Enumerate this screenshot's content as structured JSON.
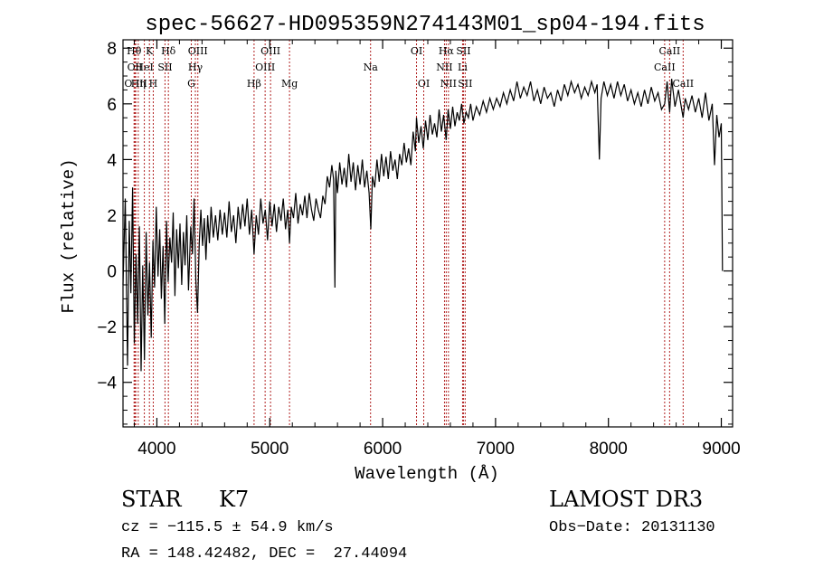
{
  "chart_data": {
    "type": "line",
    "title": "spec-56627-HD095359N274143M01_sp04-194.fits",
    "xlabel": "Wavelength (Å)",
    "ylabel": "Flux (relative)",
    "xlim": [
      3700,
      9100
    ],
    "ylim": [
      -5.6,
      8.3
    ],
    "xticks": [
      "4000",
      "5000",
      "6000",
      "7000",
      "8000",
      "9000"
    ],
    "yticks": [
      "−4",
      "−2",
      "0",
      "2",
      "4",
      "6",
      "8"
    ],
    "xtick_values": [
      4000,
      5000,
      6000,
      7000,
      8000,
      9000
    ],
    "ytick_values": [
      -4,
      -2,
      0,
      2,
      4,
      6,
      8
    ],
    "line_color": "#000000",
    "marker_color": "#b22222",
    "spectrum": [
      [
        3700,
        -0.5
      ],
      [
        3720,
        2.6
      ],
      [
        3740,
        -3.4
      ],
      [
        3755,
        1.8
      ],
      [
        3770,
        -0.8
      ],
      [
        3785,
        3.0
      ],
      [
        3800,
        -2.6
      ],
      [
        3815,
        0.6
      ],
      [
        3830,
        -1.9
      ],
      [
        3845,
        1.6
      ],
      [
        3860,
        -3.6
      ],
      [
        3875,
        0.2
      ],
      [
        3890,
        -3.2
      ],
      [
        3905,
        1.4
      ],
      [
        3920,
        -1.6
      ],
      [
        3935,
        0.3
      ],
      [
        3950,
        -2.4
      ],
      [
        3965,
        1.1
      ],
      [
        3980,
        -0.6
      ],
      [
        3995,
        2.3
      ],
      [
        4010,
        -0.2
      ],
      [
        4025,
        1.5
      ],
      [
        4040,
        -1.0
      ],
      [
        4055,
        0.9
      ],
      [
        4070,
        -1.9
      ],
      [
        4085,
        1.8
      ],
      [
        4100,
        -0.4
      ],
      [
        4115,
        1.2
      ],
      [
        4130,
        0.3
      ],
      [
        4145,
        2.1
      ],
      [
        4160,
        -0.9
      ],
      [
        4175,
        1.5
      ],
      [
        4190,
        0.1
      ],
      [
        4205,
        1.7
      ],
      [
        4220,
        -0.5
      ],
      [
        4235,
        1.4
      ],
      [
        4250,
        0.2
      ],
      [
        4265,
        2.0
      ],
      [
        4280,
        -0.7
      ],
      [
        4300,
        1.6
      ],
      [
        4315,
        0.6
      ],
      [
        4330,
        2.6
      ],
      [
        4345,
        -0.3
      ],
      [
        4360,
        -1.5
      ],
      [
        4375,
        1.0
      ],
      [
        4390,
        2.2
      ],
      [
        4405,
        0.9
      ],
      [
        4420,
        1.9
      ],
      [
        4435,
        0.4
      ],
      [
        4450,
        2.0
      ],
      [
        4465,
        1.0
      ],
      [
        4480,
        2.3
      ],
      [
        4500,
        1.2
      ],
      [
        4520,
        2.0
      ],
      [
        4540,
        1.1
      ],
      [
        4560,
        2.2
      ],
      [
        4580,
        1.3
      ],
      [
        4600,
        2.1
      ],
      [
        4620,
        1.2
      ],
      [
        4640,
        2.5
      ],
      [
        4660,
        1.4
      ],
      [
        4680,
        2.0
      ],
      [
        4700,
        1.0
      ],
      [
        4720,
        2.3
      ],
      [
        4740,
        1.5
      ],
      [
        4760,
        2.4
      ],
      [
        4780,
        1.6
      ],
      [
        4800,
        2.6
      ],
      [
        4820,
        1.3
      ],
      [
        4840,
        2.2
      ],
      [
        4861,
        0.6
      ],
      [
        4880,
        2.0
      ],
      [
        4900,
        1.3
      ],
      [
        4920,
        2.6
      ],
      [
        4940,
        1.7
      ],
      [
        4960,
        2.2
      ],
      [
        4980,
        1.1
      ],
      [
        5000,
        2.5
      ],
      [
        5020,
        1.6
      ],
      [
        5040,
        2.4
      ],
      [
        5060,
        1.4
      ],
      [
        5080,
        2.3
      ],
      [
        5100,
        1.8
      ],
      [
        5120,
        2.6
      ],
      [
        5140,
        1.5
      ],
      [
        5160,
        2.2
      ],
      [
        5175,
        1.0
      ],
      [
        5190,
        2.3
      ],
      [
        5210,
        1.9
      ],
      [
        5230,
        2.8
      ],
      [
        5250,
        1.7
      ],
      [
        5270,
        2.4
      ],
      [
        5290,
        2.0
      ],
      [
        5310,
        2.7
      ],
      [
        5330,
        1.9
      ],
      [
        5350,
        2.8
      ],
      [
        5370,
        2.2
      ],
      [
        5390,
        1.8
      ],
      [
        5410,
        2.6
      ],
      [
        5430,
        2.2
      ],
      [
        5450,
        1.9
      ],
      [
        5470,
        2.7
      ],
      [
        5490,
        2.4
      ],
      [
        5510,
        3.4
      ],
      [
        5530,
        3.0
      ],
      [
        5550,
        3.8
      ],
      [
        5565,
        3.3
      ],
      [
        5577,
        -0.6
      ],
      [
        5585,
        3.6
      ],
      [
        5600,
        2.8
      ],
      [
        5620,
        3.9
      ],
      [
        5640,
        3.1
      ],
      [
        5660,
        3.7
      ],
      [
        5680,
        3.0
      ],
      [
        5700,
        4.2
      ],
      [
        5720,
        3.2
      ],
      [
        5740,
        3.9
      ],
      [
        5760,
        2.9
      ],
      [
        5780,
        3.8
      ],
      [
        5800,
        3.1
      ],
      [
        5820,
        4.0
      ],
      [
        5840,
        3.0
      ],
      [
        5860,
        3.6
      ],
      [
        5880,
        2.8
      ],
      [
        5895,
        1.5
      ],
      [
        5910,
        3.4
      ],
      [
        5930,
        3.0
      ],
      [
        5950,
        4.0
      ],
      [
        5970,
        3.2
      ],
      [
        5990,
        4.2
      ],
      [
        6010,
        3.4
      ],
      [
        6030,
        4.1
      ],
      [
        6050,
        3.3
      ],
      [
        6070,
        4.3
      ],
      [
        6090,
        3.6
      ],
      [
        6110,
        4.0
      ],
      [
        6130,
        3.3
      ],
      [
        6150,
        4.2
      ],
      [
        6170,
        3.8
      ],
      [
        6190,
        4.6
      ],
      [
        6210,
        3.9
      ],
      [
        6230,
        4.4
      ],
      [
        6250,
        3.8
      ],
      [
        6270,
        5.0
      ],
      [
        6290,
        4.3
      ],
      [
        6300,
        5.5
      ],
      [
        6320,
        4.6
      ],
      [
        6340,
        5.2
      ],
      [
        6360,
        4.4
      ],
      [
        6380,
        5.4
      ],
      [
        6400,
        4.7
      ],
      [
        6420,
        5.6
      ],
      [
        6440,
        4.9
      ],
      [
        6460,
        5.3
      ],
      [
        6480,
        4.8
      ],
      [
        6500,
        5.8
      ],
      [
        6520,
        5.0
      ],
      [
        6540,
        5.6
      ],
      [
        6563,
        4.7
      ],
      [
        6580,
        5.8
      ],
      [
        6600,
        5.1
      ],
      [
        6620,
        5.9
      ],
      [
        6640,
        5.2
      ],
      [
        6660,
        5.7
      ],
      [
        6680,
        5.4
      ],
      [
        6700,
        6.0
      ],
      [
        6720,
        5.3
      ],
      [
        6740,
        5.7
      ],
      [
        6760,
        5.5
      ],
      [
        6780,
        6.0
      ],
      [
        6800,
        5.4
      ],
      [
        6830,
        5.9
      ],
      [
        6860,
        5.6
      ],
      [
        6890,
        6.1
      ],
      [
        6920,
        5.7
      ],
      [
        6950,
        6.2
      ],
      [
        6980,
        5.8
      ],
      [
        7010,
        6.2
      ],
      [
        7040,
        5.9
      ],
      [
        7070,
        6.4
      ],
      [
        7100,
        6.0
      ],
      [
        7130,
        6.5
      ],
      [
        7160,
        6.1
      ],
      [
        7190,
        6.8
      ],
      [
        7220,
        6.2
      ],
      [
        7250,
        6.6
      ],
      [
        7280,
        6.3
      ],
      [
        7310,
        6.8
      ],
      [
        7340,
        6.1
      ],
      [
        7370,
        6.5
      ],
      [
        7400,
        6.0
      ],
      [
        7430,
        6.6
      ],
      [
        7460,
        6.2
      ],
      [
        7490,
        6.4
      ],
      [
        7520,
        5.9
      ],
      [
        7550,
        6.5
      ],
      [
        7580,
        6.1
      ],
      [
        7610,
        6.7
      ],
      [
        7640,
        6.3
      ],
      [
        7670,
        6.8
      ],
      [
        7700,
        6.4
      ],
      [
        7730,
        6.7
      ],
      [
        7760,
        6.2
      ],
      [
        7790,
        6.6
      ],
      [
        7820,
        6.3
      ],
      [
        7850,
        6.8
      ],
      [
        7880,
        6.4
      ],
      [
        7900,
        6.7
      ],
      [
        7920,
        4.0
      ],
      [
        7935,
        6.2
      ],
      [
        7960,
        6.8
      ],
      [
        7990,
        6.3
      ],
      [
        8020,
        6.7
      ],
      [
        8050,
        6.2
      ],
      [
        8080,
        6.8
      ],
      [
        8110,
        6.3
      ],
      [
        8140,
        6.7
      ],
      [
        8170,
        6.1
      ],
      [
        8200,
        6.5
      ],
      [
        8230,
        6.0
      ],
      [
        8260,
        6.4
      ],
      [
        8290,
        5.9
      ],
      [
        8320,
        6.5
      ],
      [
        8350,
        6.0
      ],
      [
        8380,
        6.6
      ],
      [
        8410,
        6.1
      ],
      [
        8440,
        6.4
      ],
      [
        8470,
        5.8
      ],
      [
        8498,
        6.0
      ],
      [
        8520,
        6.8
      ],
      [
        8542,
        5.7
      ],
      [
        8560,
        6.9
      ],
      [
        8590,
        5.9
      ],
      [
        8620,
        6.5
      ],
      [
        8662,
        5.5
      ],
      [
        8680,
        6.2
      ],
      [
        8710,
        5.8
      ],
      [
        8740,
        6.3
      ],
      [
        8770,
        5.7
      ],
      [
        8800,
        6.2
      ],
      [
        8830,
        5.5
      ],
      [
        8860,
        6.4
      ],
      [
        8890,
        5.4
      ],
      [
        8920,
        6.0
      ],
      [
        8940,
        3.8
      ],
      [
        8960,
        5.6
      ],
      [
        8980,
        4.8
      ],
      [
        9000,
        5.3
      ],
      [
        9010,
        0.0
      ]
    ],
    "lines": [
      {
        "name": "Hθ",
        "wl": 3798,
        "row": 0
      },
      {
        "name": "O I",
        "wl": 3805,
        "row": 1
      },
      {
        "name": "O III",
        "wl": 3813,
        "row": 2
      },
      {
        "name": "K",
        "wl": 3934,
        "row": 0
      },
      {
        "name": "Hδ",
        "wl": 4102,
        "row": 0
      },
      {
        "name": "HeI",
        "wl": 3889,
        "row": 1
      },
      {
        "name": "Hη",
        "wl": 3835,
        "row": 2
      },
      {
        "name": "SII",
        "wl": 4072,
        "row": 1
      },
      {
        "name": "H",
        "wl": 3968,
        "row": 2
      },
      {
        "name": "OIII",
        "wl": 4363,
        "row": 0
      },
      {
        "name": "Hγ",
        "wl": 4341,
        "row": 1
      },
      {
        "name": "G",
        "wl": 4305,
        "row": 2
      },
      {
        "name": "OIII",
        "wl": 5007,
        "row": 0
      },
      {
        "name": "OIII",
        "wl": 4959,
        "row": 1
      },
      {
        "name": "Hβ",
        "wl": 4861,
        "row": 2
      },
      {
        "name": "Mg",
        "wl": 5175,
        "row": 2
      },
      {
        "name": "Na",
        "wl": 5893,
        "row": 1
      },
      {
        "name": "OI",
        "wl": 6300,
        "row": 0
      },
      {
        "name": "OI",
        "wl": 6364,
        "row": 2
      },
      {
        "name": "Hα",
        "wl": 6563,
        "row": 0
      },
      {
        "name": "SII",
        "wl": 6716,
        "row": 0
      },
      {
        "name": "NII",
        "wl": 6548,
        "row": 1
      },
      {
        "name": "Li",
        "wl": 6708,
        "row": 1
      },
      {
        "name": "NII",
        "wl": 6583,
        "row": 2
      },
      {
        "name": "SII",
        "wl": 6731,
        "row": 2
      },
      {
        "name": "CaII",
        "wl": 8542,
        "row": 0
      },
      {
        "name": "CaII",
        "wl": 8498,
        "row": 1
      },
      {
        "name": "CaII",
        "wl": 8662,
        "row": 2
      }
    ]
  },
  "info": {
    "object_class": "STAR",
    "subclass": "K7",
    "survey": "LAMOST DR3",
    "redshift_line": "cz = −115.5 ± 54.9 km/s",
    "obs_date": "Obs−Date: 20131130",
    "coords": "RA = 148.42482, DEC =  27.44094"
  }
}
